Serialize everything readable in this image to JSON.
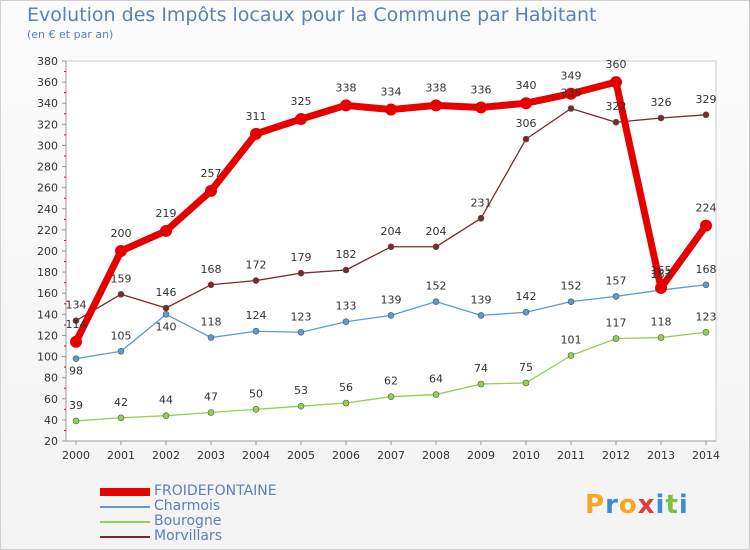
{
  "chart_data": {
    "type": "line",
    "title": "Evolution des Impôts locaux pour la Commune par Habitant",
    "subtitle": "(en € et par an)",
    "x": [
      "2000",
      "2001",
      "2002",
      "2003",
      "2004",
      "2005",
      "2006",
      "2007",
      "2008",
      "2009",
      "2010",
      "2011",
      "2012",
      "2013",
      "2014"
    ],
    "ylim": [
      20,
      380
    ],
    "yticks": [
      20,
      40,
      60,
      80,
      100,
      120,
      140,
      160,
      180,
      200,
      220,
      240,
      260,
      280,
      300,
      320,
      340,
      360,
      380
    ],
    "grid": false,
    "legend_position": "bottom-left",
    "series": [
      {
        "name": "FROIDEFONTAINE",
        "color": "#e60000",
        "values": [
          114,
          200,
          219,
          257,
          311,
          325,
          338,
          334,
          338,
          336,
          340,
          349,
          360,
          165,
          224
        ]
      },
      {
        "name": "Charmois",
        "color": "#5b9bd5",
        "values": [
          98,
          105,
          140,
          118,
          124,
          123,
          133,
          139,
          152,
          139,
          142,
          152,
          157,
          163,
          168
        ]
      },
      {
        "name": "Bourogne",
        "color": "#92d050",
        "values": [
          39,
          42,
          44,
          47,
          50,
          53,
          56,
          62,
          64,
          74,
          75,
          101,
          117,
          118,
          123
        ]
      },
      {
        "name": "Morvillars",
        "color": "#7b2a2a",
        "values": [
          134,
          159,
          146,
          168,
          172,
          179,
          182,
          204,
          204,
          231,
          306,
          335,
          322,
          326,
          329
        ]
      }
    ]
  },
  "logo": {
    "text": "Proxiti",
    "colors": [
      "#f5a623",
      "#3b8ed6",
      "#f5a623",
      "#e23b3b",
      "#3b8ed6",
      "#7fbf3f",
      "#3b8ed6"
    ]
  }
}
